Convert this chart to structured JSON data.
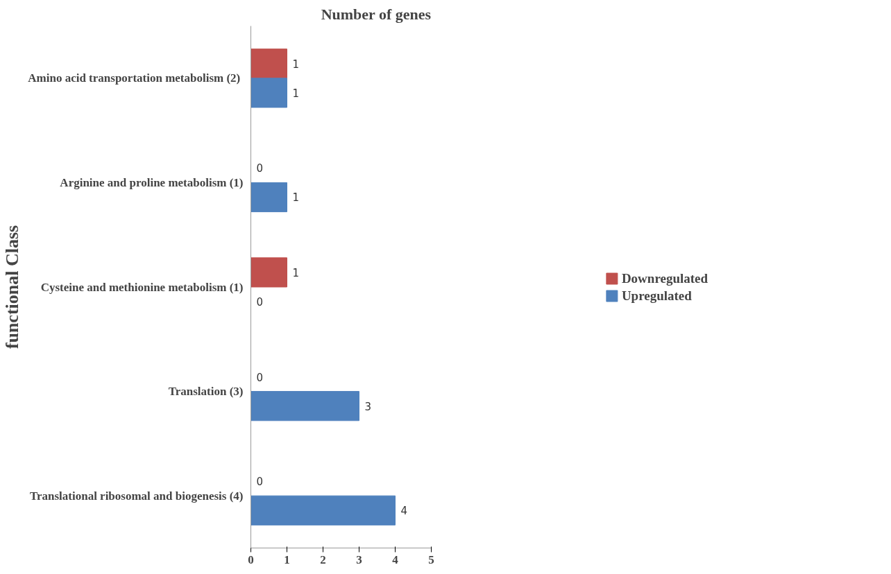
{
  "chart_data": {
    "type": "bar",
    "orientation": "horizontal",
    "xlabel": "Number of genes",
    "ylabel": "functional Class",
    "categories": [
      "Amino acid transportation  metabolism (2)",
      "Arginine and proline metabolism (1)",
      "Cysteine and methionine metabolism (1)",
      "Translation (3)",
      "Translational ribosomal and biogenesis (4)"
    ],
    "series": [
      {
        "name": "Downregulated",
        "color": "#c0504d",
        "values": [
          1,
          0,
          1,
          0,
          0
        ]
      },
      {
        "name": "Upregulated",
        "color": "#4f81bd",
        "values": [
          1,
          1,
          0,
          3,
          4
        ]
      }
    ],
    "xlim": [
      0,
      5
    ],
    "xticks": [
      0,
      1,
      2,
      3,
      4,
      5
    ],
    "data_labels": true,
    "legend": "right",
    "grid": false
  }
}
